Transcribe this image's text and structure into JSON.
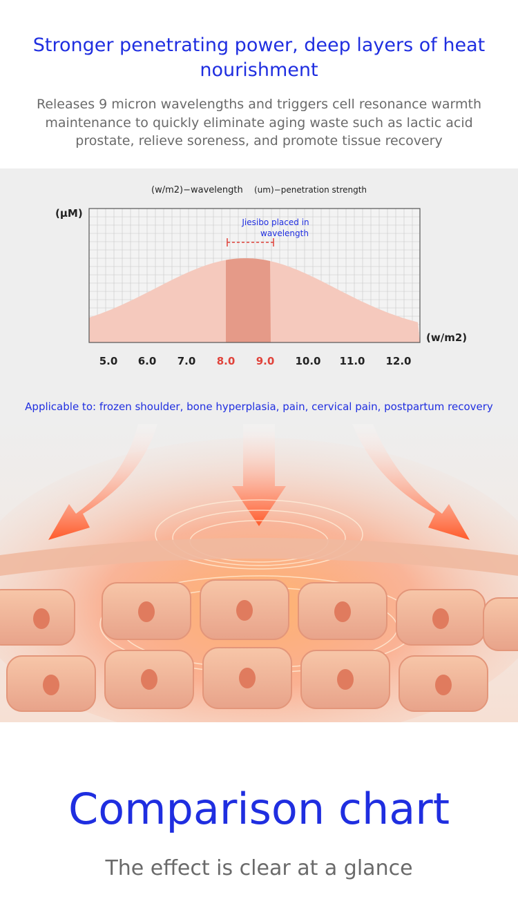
{
  "header": {
    "title": "Stronger penetrating power, deep layers of heat nourishment",
    "subtitle": "Releases 9 micron wavelengths and triggers cell resonance warmth maintenance to quickly eliminate aging waste such as lactic acid prostate, relieve soreness, and promote tissue recovery"
  },
  "chart": {
    "legend_left": "(w/m2)−wavelength",
    "legend_right": "(um)−penetration strength",
    "y_unit": "(μM)",
    "x_unit": "(w/m2)",
    "annotation": [
      "Jiesibo placed in",
      "wavelength"
    ],
    "colors": {
      "curve_fill": "#f5c9bd",
      "highlight_fill": "#e59a88",
      "grid": "#c8c8c8",
      "highlight_tick": "#e0423a",
      "annotation_text": "#1f2ee0",
      "bracket": "#e0423a"
    }
  },
  "chart_data": {
    "type": "area",
    "title": "",
    "xlabel": "(w/m2)",
    "ylabel": "(μM)",
    "x_ticks": [
      "5.0",
      "6.0",
      "7.0",
      "8.0",
      "9.0",
      "10.0",
      "11.0",
      "12.0"
    ],
    "highlighted_ticks": [
      "8.0",
      "9.0"
    ],
    "highlight_range": [
      8.0,
      9.0
    ],
    "peak_x": 8.5,
    "grid": true
  },
  "applicable_text": "Applicable to: frozen shoulder, bone hyperplasia, pain, cervical pain, postpartum recovery",
  "illustration": {
    "icons": [
      "heat-arrow-left-icon",
      "heat-arrow-center-icon",
      "heat-arrow-right-icon",
      "cell-layer-icon"
    ]
  },
  "comparison": {
    "title": "Comparison chart",
    "subtitle": "The effect is clear at a glance"
  }
}
